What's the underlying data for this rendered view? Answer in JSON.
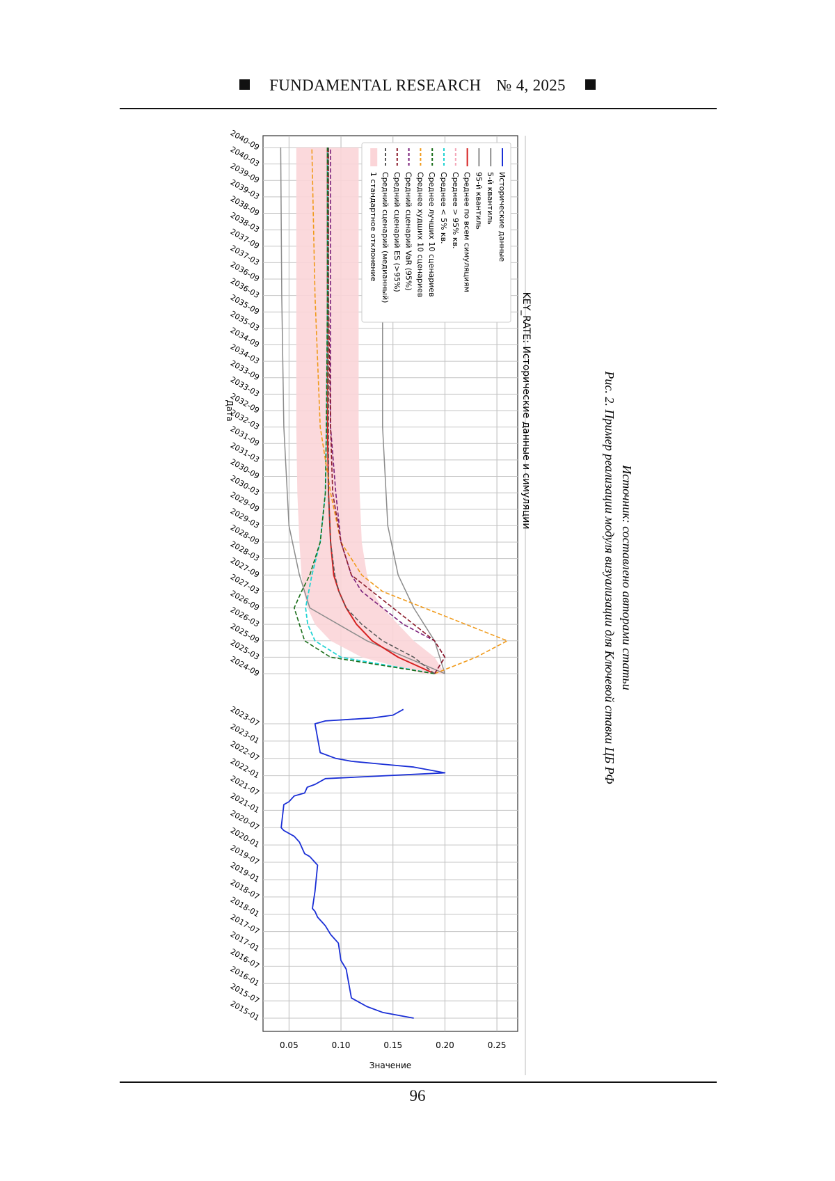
{
  "header": {
    "journal": "FUNDAMENTAL RESEARCH",
    "issue": "№ 4,  2025"
  },
  "page_number": "96",
  "figure": {
    "caption": "Рис. 2. Пример реализации модуля визуализации для Ключевой ставки ЦБ РФ",
    "source": "Источник: составлено авторами статьи"
  },
  "colors": {
    "historical": "#1a2fd6",
    "quantiles": "#8c8c8c",
    "mean_all": "#d62020",
    "mean_above_95": "#f4a6b8",
    "mean_below_5": "#22d3d3",
    "best10": "#1a6e1a",
    "worst10": "#f09a1a",
    "var95": "#7a1f7a",
    "es95": "#8b1a2a",
    "median": "#555555",
    "band": "#fbd5d8"
  },
  "chart_data": {
    "type": "line",
    "title": "KEY_RATE: Исторические данные и симуляции",
    "xlabel": "Дата",
    "ylabel": "Значение",
    "ylim": [
      0.025,
      0.27
    ],
    "y_ticks": [
      "0.05",
      "0.10",
      "0.15",
      "0.20",
      "0.25"
    ],
    "y_tick_values": [
      0.05,
      0.1,
      0.15,
      0.2,
      0.25
    ],
    "x_ticks_historical": [
      "2015-01",
      "2015-07",
      "2016-01",
      "2016-07",
      "2017-01",
      "2017-07",
      "2018-01",
      "2018-07",
      "2019-01",
      "2019-07",
      "2020-01",
      "2020-07",
      "2021-01",
      "2021-07",
      "2022-01",
      "2022-07",
      "2023-01",
      "2023-07"
    ],
    "x_ticks_simulated": [
      "2024-09",
      "2025-03",
      "2025-09",
      "2026-03",
      "2026-09",
      "2027-03",
      "2027-09",
      "2028-03",
      "2028-09",
      "2029-03",
      "2029-09",
      "2030-03",
      "2030-09",
      "2031-03",
      "2031-09",
      "2032-03",
      "2032-09",
      "2033-03",
      "2033-09",
      "2034-03",
      "2034-09",
      "2035-03",
      "2035-09",
      "2036-03",
      "2036-09",
      "2037-03",
      "2037-09",
      "2038-03",
      "2038-09",
      "2039-03",
      "2039-09",
      "2040-03",
      "2040-09"
    ],
    "grid": true,
    "legend_position": "upper-left",
    "legend": [
      "Исторические данные",
      "5-й квантиль",
      "95-й квантиль",
      "Среднее по всем симуляциям",
      "Среднее > 95% кв.",
      "Среднее < 5% кв.",
      "Среднее лучших 10 сценариев",
      "Среднее худших 10 сценариев",
      "Средний сценарий VaR (95%)",
      "Средний сценарий ES (>95%)",
      "Средний сценарий (медианный)",
      "1 стандартное отклонение"
    ],
    "series": [
      {
        "name": "Исторические данные",
        "x": [
          "2015-01",
          "2015-03",
          "2015-05",
          "2015-08",
          "2016-06",
          "2016-09",
          "2017-03",
          "2017-05",
          "2017-06",
          "2017-09",
          "2017-10",
          "2017-12",
          "2018-02",
          "2018-03",
          "2018-09",
          "2019-06",
          "2019-07",
          "2019-09",
          "2019-10",
          "2019-12",
          "2020-02",
          "2020-04",
          "2020-06",
          "2020-07",
          "2021-03",
          "2021-04",
          "2021-06",
          "2021-07",
          "2021-09",
          "2021-10",
          "2021-12",
          "2022-02",
          "2022-04",
          "2022-05",
          "2022-06",
          "2022-07",
          "2022-09",
          "2023-07",
          "2023-08",
          "2023-09",
          "2023-10",
          "2023-12"
        ],
        "y": [
          0.17,
          0.14,
          0.125,
          0.11,
          0.105,
          0.1,
          0.0975,
          0.0925,
          0.09,
          0.085,
          0.0825,
          0.0775,
          0.075,
          0.0725,
          0.075,
          0.0775,
          0.075,
          0.07,
          0.065,
          0.0625,
          0.06,
          0.055,
          0.045,
          0.0425,
          0.045,
          0.05,
          0.055,
          0.065,
          0.0675,
          0.075,
          0.085,
          0.2,
          0.17,
          0.14,
          0.11,
          0.095,
          0.08,
          0.075,
          0.085,
          0.13,
          0.15,
          0.16
        ]
      },
      {
        "name": "5-й квантиль",
        "x": [
          "2024-09",
          "2025-09",
          "2026-09",
          "2027-09",
          "2029-03",
          "2032-03",
          "2036-03",
          "2040-09"
        ],
        "y": [
          0.2,
          0.125,
          0.07,
          0.06,
          0.05,
          0.045,
          0.043,
          0.042
        ]
      },
      {
        "name": "95-й квантиль",
        "x": [
          "2024-09",
          "2025-09",
          "2026-09",
          "2027-09",
          "2029-03",
          "2032-03",
          "2036-03",
          "2040-09"
        ],
        "y": [
          0.2,
          0.19,
          0.17,
          0.155,
          0.145,
          0.14,
          0.14,
          0.14
        ]
      },
      {
        "name": "Среднее по всем симуляциям",
        "x": [
          "2024-09",
          "2025-03",
          "2025-09",
          "2026-03",
          "2026-09",
          "2027-03",
          "2027-09",
          "2028-09",
          "2030-03",
          "2032-03",
          "2035-03",
          "2040-09"
        ],
        "y": [
          0.19,
          0.155,
          0.13,
          0.115,
          0.105,
          0.098,
          0.093,
          0.09,
          0.088,
          0.087,
          0.087,
          0.087
        ]
      },
      {
        "name": "Среднее < 5% кв.",
        "x": [
          "2024-09",
          "2025-03",
          "2025-09",
          "2026-03",
          "2026-09",
          "2027-09",
          "2028-09",
          "2030-03",
          "2032-03",
          "2036-03",
          "2040-09"
        ],
        "y": [
          0.19,
          0.1,
          0.075,
          0.068,
          0.066,
          0.072,
          0.08,
          0.085,
          0.086,
          0.087,
          0.087
        ]
      },
      {
        "name": "Среднее лучших 10 сценариев",
        "x": [
          "2024-09",
          "2025-03",
          "2025-09",
          "2026-03",
          "2026-09",
          "2027-03",
          "2027-09",
          "2028-09",
          "2030-03",
          "2032-03",
          "2036-03",
          "2040-09"
        ],
        "y": [
          0.19,
          0.09,
          0.065,
          0.06,
          0.055,
          0.062,
          0.07,
          0.08,
          0.085,
          0.086,
          0.087,
          0.087
        ]
      },
      {
        "name": "Среднее худших 10 сценариев",
        "x": [
          "2024-09",
          "2025-03",
          "2025-09",
          "2026-03",
          "2026-09",
          "2027-03",
          "2027-09",
          "2028-09",
          "2030-03",
          "2032-03",
          "2036-03",
          "2040-09"
        ],
        "y": [
          0.19,
          0.23,
          0.26,
          0.22,
          0.18,
          0.14,
          0.12,
          0.1,
          0.09,
          0.08,
          0.075,
          0.072
        ]
      },
      {
        "name": "Средний сценарий VaR (95%)",
        "x": [
          "2024-09",
          "2025-03",
          "2025-09",
          "2026-03",
          "2026-09",
          "2027-03",
          "2027-09",
          "2028-09",
          "2030-03",
          "2032-03",
          "2036-03",
          "2040-09"
        ],
        "y": [
          0.19,
          0.2,
          0.19,
          0.16,
          0.14,
          0.12,
          0.11,
          0.1,
          0.095,
          0.09,
          0.09,
          0.09
        ]
      },
      {
        "name": "Средний сценарий ES (>95%)",
        "x": [
          "2024-09",
          "2025-03",
          "2025-09",
          "2026-03",
          "2026-09",
          "2027-03",
          "2027-09",
          "2028-09",
          "2030-03",
          "2032-03",
          "2036-03",
          "2040-09"
        ],
        "y": [
          0.19,
          0.2,
          0.19,
          0.17,
          0.15,
          0.13,
          0.11,
          0.1,
          0.092,
          0.09,
          0.088,
          0.088
        ]
      },
      {
        "name": "Средний сценарий (медианный)",
        "x": [
          "2024-09",
          "2025-03",
          "2025-09",
          "2026-03",
          "2026-09",
          "2027-03",
          "2027-09",
          "2028-09",
          "2030-03",
          "2032-03",
          "2036-03",
          "2040-09"
        ],
        "y": [
          0.19,
          0.17,
          0.14,
          0.12,
          0.105,
          0.098,
          0.094,
          0.09,
          0.088,
          0.088,
          0.088,
          0.088
        ]
      }
    ],
    "band": {
      "name": "1 стандартное отклонение",
      "x": [
        "2024-09",
        "2025-03",
        "2025-09",
        "2026-03",
        "2026-09",
        "2027-03",
        "2027-09",
        "2028-09",
        "2030-03",
        "2032-03",
        "2036-03",
        "2040-09"
      ],
      "lower": [
        0.18,
        0.12,
        0.09,
        0.075,
        0.068,
        0.064,
        0.062,
        0.06,
        0.058,
        0.057,
        0.057,
        0.057
      ],
      "upper": [
        0.2,
        0.19,
        0.17,
        0.155,
        0.14,
        0.13,
        0.125,
        0.12,
        0.118,
        0.117,
        0.117,
        0.117
      ]
    }
  }
}
